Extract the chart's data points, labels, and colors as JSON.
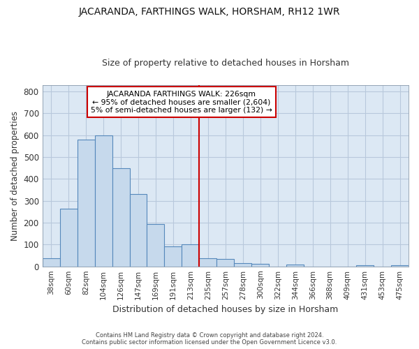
{
  "title": "JACARANDA, FARTHINGS WALK, HORSHAM, RH12 1WR",
  "subtitle": "Size of property relative to detached houses in Horsham",
  "xlabel": "Distribution of detached houses by size in Horsham",
  "ylabel": "Number of detached properties",
  "footer_line1": "Contains HM Land Registry data © Crown copyright and database right 2024.",
  "footer_line2": "Contains public sector information licensed under the Open Government Licence v3.0.",
  "bar_labels": [
    "38sqm",
    "60sqm",
    "82sqm",
    "104sqm",
    "126sqm",
    "147sqm",
    "169sqm",
    "191sqm",
    "213sqm",
    "235sqm",
    "257sqm",
    "278sqm",
    "300sqm",
    "322sqm",
    "344sqm",
    "366sqm",
    "388sqm",
    "409sqm",
    "431sqm",
    "453sqm",
    "475sqm"
  ],
  "bar_values": [
    38,
    265,
    580,
    600,
    450,
    330,
    195,
    90,
    100,
    38,
    33,
    15,
    12,
    0,
    7,
    0,
    0,
    0,
    5,
    0,
    6
  ],
  "bar_color": "#c6d9ec",
  "bar_edge_color": "#5588bb",
  "grid_color": "#b8c8dc",
  "plot_bg_color": "#dce8f4",
  "figure_bg_color": "#ffffff",
  "vline_x": 9.0,
  "vline_color": "#cc0000",
  "annotation_title": "JACARANDA FARTHINGS WALK: 226sqm",
  "annotation_line1": "← 95% of detached houses are smaller (2,604)",
  "annotation_line2": "5% of semi-detached houses are larger (132) →",
  "annotation_box_color": "#cc0000",
  "ylim": [
    0,
    830
  ],
  "yticks": [
    0,
    100,
    200,
    300,
    400,
    500,
    600,
    700,
    800
  ]
}
